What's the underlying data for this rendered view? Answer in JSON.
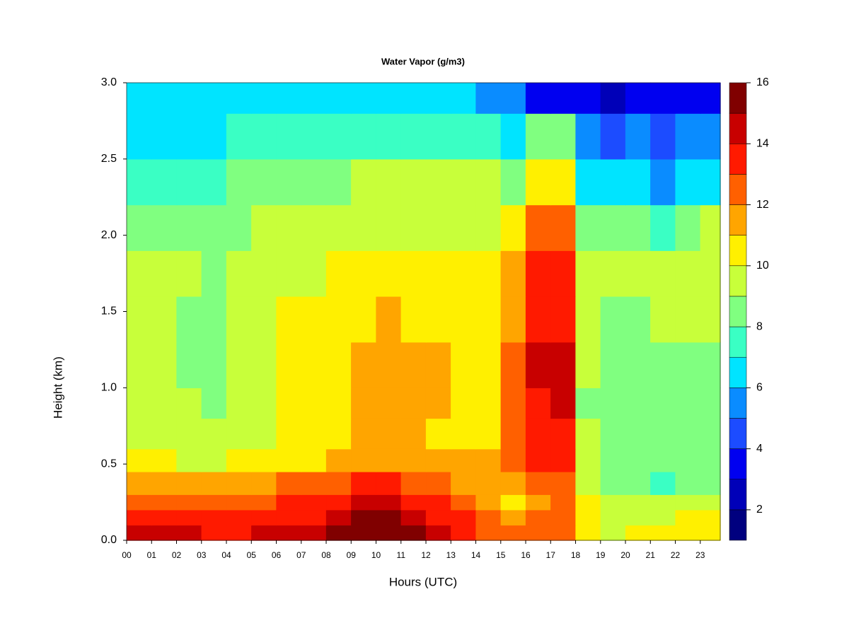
{
  "chart_data": {
    "type": "contour",
    "title": "Water Vapor (g/m3)",
    "x_label": "Hours (UTC)",
    "y_label": "Height (km)",
    "x": [
      0,
      1,
      2,
      3,
      4,
      5,
      6,
      7,
      8,
      9,
      10,
      11,
      12,
      13,
      14,
      15,
      16,
      17,
      18,
      19,
      20,
      21,
      22,
      23
    ],
    "y": [
      0,
      0.1,
      0.2,
      0.3,
      0.45,
      0.6,
      0.8,
      1.0,
      1.3,
      1.6,
      1.9,
      2.2,
      2.5,
      2.8
    ],
    "z": [
      [
        14,
        14.5,
        14,
        13.5,
        13.5,
        14,
        14,
        14,
        15,
        15.5,
        15.5,
        15,
        14,
        13.5,
        12.5,
        12,
        12.5,
        12.5,
        10.5,
        9.5,
        10,
        10,
        10.5,
        10.5
      ],
      [
        13.5,
        13.5,
        13.5,
        13.5,
        13.5,
        13.5,
        13.5,
        13.5,
        14.5,
        15,
        15,
        14.5,
        13.5,
        13.5,
        12.5,
        11.5,
        12,
        12.5,
        10.5,
        9.5,
        9.5,
        9.5,
        10,
        10.5
      ],
      [
        12.5,
        12.5,
        12.5,
        12,
        12.5,
        12.5,
        13.5,
        13.5,
        13.5,
        14.5,
        14.5,
        13.5,
        13.5,
        12.5,
        11.5,
        10.5,
        11.5,
        12,
        10,
        9.2,
        9.2,
        9.2,
        9.2,
        9.2
      ],
      [
        11.5,
        11.5,
        11,
        11,
        11.5,
        11.5,
        12,
        12.5,
        12.5,
        13.5,
        13.5,
        12.5,
        12.5,
        11.5,
        11,
        11,
        12,
        12.5,
        9,
        8.5,
        8.5,
        7.5,
        8.5,
        8.5
      ],
      [
        10,
        10.5,
        9.8,
        9.8,
        10,
        10.5,
        10.5,
        10.5,
        11.5,
        11.5,
        11.5,
        11.5,
        11.5,
        11.5,
        11.5,
        12,
        13,
        13.5,
        9,
        8.5,
        8.5,
        8.5,
        8.5,
        8.5
      ],
      [
        9.5,
        9.5,
        9.5,
        9.2,
        9.5,
        9.5,
        10.5,
        10.5,
        10.5,
        11,
        11,
        11,
        10.5,
        10.5,
        10.5,
        12.5,
        13.5,
        13.5,
        9,
        8.5,
        8.5,
        8.5,
        8.5,
        8
      ],
      [
        9.2,
        9.2,
        9,
        8.8,
        9.2,
        9.5,
        10.5,
        10.5,
        10.5,
        11.5,
        11.5,
        11.5,
        11.5,
        10.5,
        10.5,
        12.5,
        13.5,
        14,
        8.5,
        8.5,
        8.5,
        8.5,
        8.5,
        8.5
      ],
      [
        9.2,
        9.2,
        8.5,
        8.5,
        9.2,
        9.5,
        10.5,
        10.5,
        10.5,
        11.5,
        11.5,
        11.5,
        11.5,
        10.5,
        10.5,
        12.5,
        14.5,
        14.5,
        9,
        8.5,
        8.5,
        8.5,
        8.5,
        8.5
      ],
      [
        9,
        9,
        8.5,
        8.5,
        9,
        9.2,
        10.5,
        10.5,
        10.5,
        10.5,
        11,
        10.5,
        10.5,
        10.5,
        10.5,
        11.5,
        13.5,
        13.5,
        9,
        8.5,
        8.5,
        9,
        9,
        9
      ],
      [
        9.2,
        9.2,
        9.2,
        8.5,
        9.2,
        9.5,
        9.5,
        9.5,
        10.5,
        10.5,
        10.5,
        10.5,
        10.5,
        10.5,
        10.5,
        11.5,
        13.5,
        13.5,
        9,
        9,
        9.2,
        9.2,
        9.2,
        9.2
      ],
      [
        8.5,
        8.5,
        8.5,
        8.5,
        8.5,
        9.2,
        9.2,
        9.2,
        9.5,
        9.5,
        9.5,
        9.5,
        9.5,
        9.5,
        9.5,
        10.5,
        12.5,
        12.5,
        8.5,
        8,
        8.5,
        7.5,
        8.5,
        9
      ],
      [
        7.5,
        7.5,
        7.5,
        7.8,
        8,
        8.5,
        8.5,
        8.5,
        8.5,
        9.2,
        9.2,
        9.2,
        9.5,
        9.5,
        9.2,
        8.5,
        10.5,
        10.5,
        6.5,
        6.5,
        6.5,
        5.5,
        6.5,
        6.5
      ],
      [
        6.5,
        6.5,
        6.5,
        6.8,
        7,
        7.5,
        7.5,
        7.5,
        7.5,
        7.5,
        7.5,
        7.5,
        7.5,
        7.5,
        7,
        6.5,
        8,
        8,
        5,
        4.5,
        5,
        4.5,
        5,
        5.5
      ],
      [
        6,
        6,
        6,
        6,
        6.5,
        6.5,
        6.5,
        6.5,
        6.5,
        6.5,
        6.5,
        6.5,
        6.5,
        6,
        5,
        5,
        3.5,
        3.5,
        3,
        2.5,
        3,
        3.5,
        3.5,
        3.5
      ]
    ],
    "xlim": [
      0,
      23.8
    ],
    "ylim": [
      0,
      3
    ],
    "xticks": [
      {
        "value": 0,
        "label": "00"
      },
      {
        "value": 1,
        "label": "01"
      },
      {
        "value": 2,
        "label": "02"
      },
      {
        "value": 3,
        "label": "03"
      },
      {
        "value": 4,
        "label": "04"
      },
      {
        "value": 5,
        "label": "05"
      },
      {
        "value": 6,
        "label": "06"
      },
      {
        "value": 7,
        "label": "07"
      },
      {
        "value": 8,
        "label": "08"
      },
      {
        "value": 9,
        "label": "09"
      },
      10,
      11,
      12,
      13,
      14,
      15,
      16,
      17,
      18,
      19,
      20,
      21,
      22,
      23
    ],
    "yticks": [
      {
        "value": 0,
        "label": "0.0"
      },
      0.5,
      {
        "value": 1,
        "label": "1.0"
      },
      1.5,
      {
        "value": 2,
        "label": "2.0"
      },
      2.5,
      {
        "value": 3,
        "label": "3.0"
      }
    ],
    "levels": [
      1,
      2,
      3,
      4,
      5,
      6,
      7,
      8,
      9,
      10,
      11,
      12,
      13,
      14,
      15,
      16
    ],
    "colors": [
      "#00007f",
      "#0000b8",
      "#0000f0",
      "#1c4cff",
      "#0a8cff",
      "#00e4ff",
      "#3affc4",
      "#80ff80",
      "#c8ff3a",
      "#fff000",
      "#ffa500",
      "#ff6000",
      "#ff1a00",
      "#c80000",
      "#800000"
    ],
    "colorbar_ticks": [
      2,
      4,
      6,
      8,
      10,
      12,
      14,
      16
    ]
  }
}
